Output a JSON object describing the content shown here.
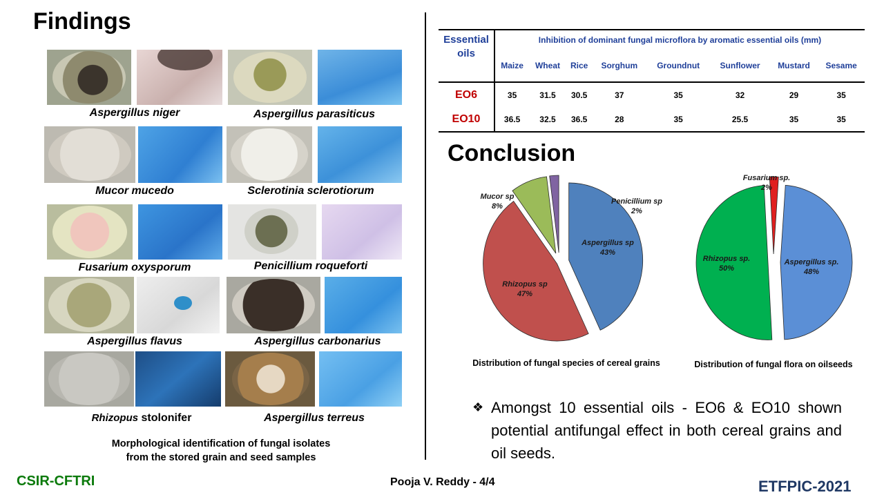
{
  "findings_title": "Findings",
  "conclusion_title": "Conclusion",
  "fungi_captions": [
    "Aspergillus niger",
    "Aspergillus parasiticus",
    "Mucor mucedo",
    "Sclerotinia sclerotiorum",
    "Fusarium oxysporum",
    "Penicillium roqueforti",
    "Aspergillus flavus",
    "Aspergillus carbonarius",
    "Rhizopus",
    "stolonifer",
    "Aspergillus terreus"
  ],
  "morph_caption": {
    "line1": "Morphological identification of fungal isolates",
    "line2": "from the stored grain and seed samples"
  },
  "table": {
    "header_col": "Essential oils",
    "header_col_line1": "Essential",
    "header_col_line2": "oils",
    "header_span": "Inhibition of dominant fungal microflora by aromatic essential oils (mm)",
    "columns": [
      "Maize",
      "Wheat",
      "Rice",
      "Sorghum",
      "Groundnut",
      "Sunflower",
      "Mustard",
      "Sesame"
    ],
    "rows": [
      {
        "label": "EO6",
        "values": [
          "35",
          "31.5",
          "30.5",
          "37",
          "35",
          "32",
          "29",
          "35"
        ]
      },
      {
        "label": "EO10",
        "values": [
          "36.5",
          "32.5",
          "36.5",
          "28",
          "35",
          "25.5",
          "35",
          "35"
        ]
      }
    ]
  },
  "chart_data": [
    {
      "type": "pie",
      "caption": "Distribution of fungal species of cereal grains",
      "slices": [
        {
          "label": "Aspergillus sp",
          "value": 43,
          "pct": "43%",
          "color": "#4f81bd"
        },
        {
          "label": "Rhizopus sp",
          "value": 47,
          "pct": "47%",
          "color": "#c0504d"
        },
        {
          "label": "Mucor sp",
          "value": 8,
          "pct": "8%",
          "color": "#9bbb59"
        },
        {
          "label": "Penicillium sp",
          "value": 2,
          "pct": "2%",
          "color": "#8064a2"
        }
      ]
    },
    {
      "type": "pie",
      "caption": "Distribution of fungal flora on oilseeds",
      "slices": [
        {
          "label": "Aspergillus sp.",
          "value": 48,
          "pct": "48%",
          "color": "#5b8fd6"
        },
        {
          "label": "Rhizopus sp.",
          "value": 50,
          "pct": "50%",
          "color": "#00b050"
        },
        {
          "label": "Fusarium sp.",
          "value": 2,
          "pct": "2%",
          "color": "#e02020"
        }
      ]
    }
  ],
  "bullet_symbol": "❖",
  "bullet_text": "Amongst 10 essential oils - EO6 & EO10 shown potential antifungal effect in both cereal grains and oil seeds.",
  "footer": {
    "left": "CSIR-CFTRI",
    "center": "Pooja V. Reddy - 4/4",
    "right": "ETFPIC-2021"
  },
  "colors": {
    "left_footer": "#0b7a0b",
    "right_footer": "#1f3864",
    "table_label": "#c00000",
    "table_header": "#1f3f99"
  }
}
